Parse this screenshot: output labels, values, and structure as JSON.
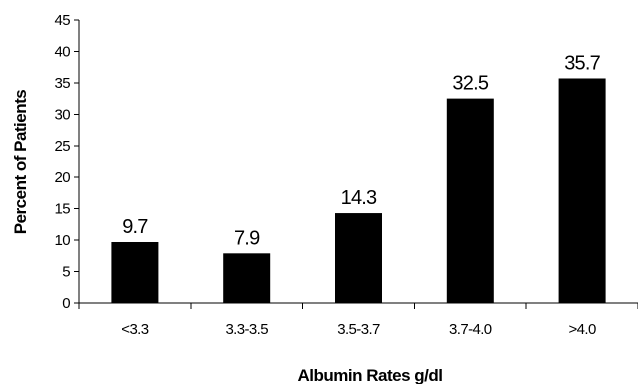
{
  "chart_data": {
    "type": "bar",
    "title": "",
    "xlabel": "Albumin Rates g/dl",
    "ylabel": "Percent of Patients",
    "categories": [
      "<3.3",
      "3.3-3.5",
      "3.5-3.7",
      "3.7-4.0",
      ">4.0"
    ],
    "values": [
      9.7,
      7.9,
      14.3,
      32.5,
      35.7
    ],
    "value_labels": [
      "9.7",
      "7.9",
      "14.3",
      "32.5",
      "35.7"
    ],
    "ylim": [
      0,
      45
    ],
    "yticks": [
      0,
      5,
      10,
      15,
      20,
      25,
      30,
      35,
      40,
      45
    ],
    "grid": false,
    "legend": "none",
    "bar_color": "#000000"
  }
}
